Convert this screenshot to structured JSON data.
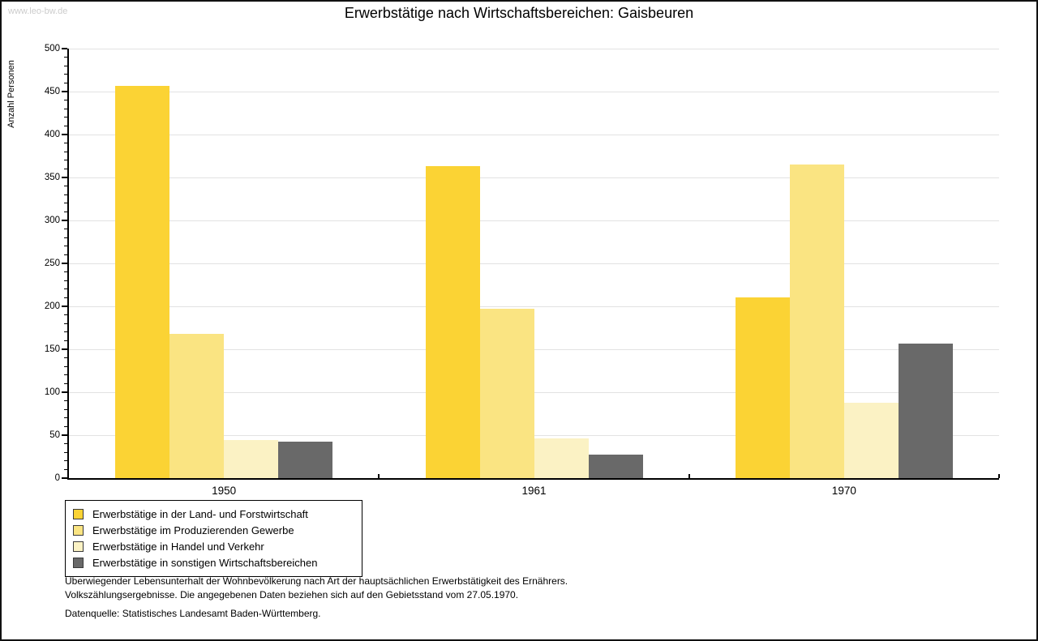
{
  "watermark": "www.leo-bw.de",
  "chart_data": {
    "type": "bar",
    "title": "Erwerbstätige nach Wirtschaftsbereichen: Gaisbeuren",
    "ylabel": "Anzahl Personen",
    "xlabel": "",
    "ylim": [
      0,
      500
    ],
    "ytick_step": 50,
    "yminor_step": 10,
    "grid": true,
    "legend_position": "bottom-left",
    "categories": [
      "1950",
      "1961",
      "1970"
    ],
    "series": [
      {
        "name": "Erwerbstätige in der Land- und Forstwirtschaft",
        "color": "#FBD334",
        "values": [
          457,
          363,
          210
        ]
      },
      {
        "name": "Erwerbstätige im Produzierenden Gewerbe",
        "color": "#FAE482",
        "values": [
          168,
          197,
          365
        ]
      },
      {
        "name": "Erwerbstätige in Handel und Verkehr",
        "color": "#FBF2C4",
        "values": [
          44,
          46,
          88
        ]
      },
      {
        "name": "Erwerbstätige in sonstigen Wirtschaftsbereichen",
        "color": "#696969",
        "values": [
          42,
          27,
          157
        ]
      }
    ]
  },
  "footnotes": {
    "line1": "Überwiegender Lebensunterhalt der Wohnbevölkerung nach Art der hauptsächlichen Erwerbstätigkeit des Ernährers.",
    "line2": "Volkszählungsergebnisse. Die angegebenen Daten beziehen sich auf den Gebietsstand vom 27.05.1970.",
    "source": "Datenquelle: Statistisches Landesamt Baden-Württemberg."
  }
}
